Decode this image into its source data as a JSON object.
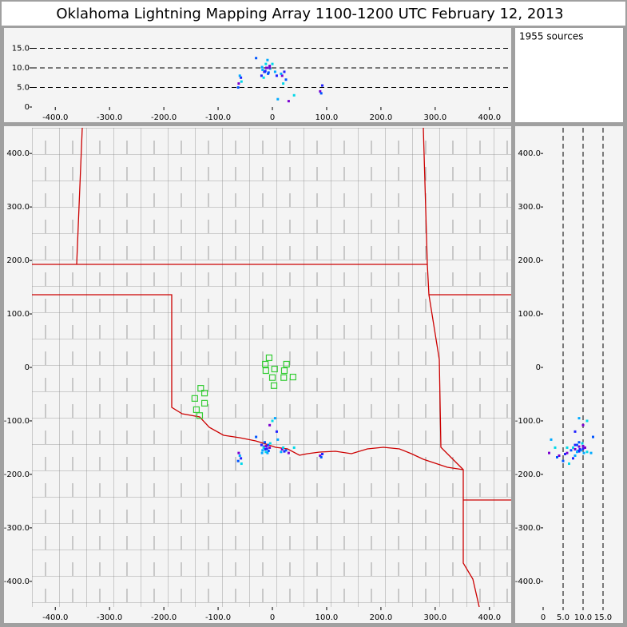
{
  "chart_data": {
    "type": "scatter",
    "title": "Oklahoma Lightning Mapping Array   1100-1200 UTC  February 12, 2013",
    "sources_label": "1955 sources",
    "colors": [
      "#7a00d0",
      "#2222ff",
      "#0055ff",
      "#00aaff",
      "#00d8e8"
    ],
    "station_color": "#33cc33",
    "sources": {
      "x": [
        -15,
        -10,
        -8,
        -18,
        -12,
        -5,
        -20,
        -14,
        -9,
        -16,
        -11,
        -13,
        -7,
        -19,
        -4,
        18,
        22,
        25,
        16,
        20,
        -62,
        -58,
        -63,
        -60,
        -57,
        88,
        92,
        90,
        5,
        0,
        -5,
        8,
        -30,
        10,
        40,
        30
      ],
      "y": [
        -148,
        -152,
        -145,
        -155,
        -158,
        -150,
        -145,
        -140,
        -160,
        -150,
        -147,
        -153,
        -156,
        -160,
        -142,
        -153,
        -157,
        -155,
        -158,
        -150,
        -160,
        -170,
        -175,
        -165,
        -180,
        -165,
        -162,
        -168,
        -95,
        -100,
        -108,
        -120,
        -130,
        -135,
        -150,
        -160
      ],
      "alt": [
        9,
        10,
        8.5,
        9.5,
        11,
        10.5,
        8,
        9,
        12,
        7.5,
        10,
        9.2,
        8.8,
        10.2,
        9.8,
        8,
        9,
        7,
        8.5,
        6,
        6,
        7.5,
        5,
        8,
        6.5,
        4,
        5.5,
        3.5,
        9,
        11,
        10,
        8,
        12.5,
        2,
        3,
        1.5
      ]
    },
    "stations": {
      "x": [
        -6,
        -13,
        4,
        26,
        22,
        -12,
        0,
        21,
        38,
        3,
        -132,
        -125,
        -143,
        -125,
        -140,
        -134
      ],
      "y": [
        18,
        6,
        -3,
        6,
        -6,
        -6,
        -19,
        -19,
        -18,
        -34,
        -39,
        -48,
        -58,
        -67,
        -79,
        -90
      ]
    },
    "plan": {
      "xlim": [
        -443,
        440
      ],
      "ylim": [
        -448,
        448
      ],
      "xticks": [
        {
          "value": -400,
          "label": "-400.0"
        },
        {
          "value": -300,
          "label": "-300.0"
        },
        {
          "value": -200,
          "label": "-200.0"
        },
        {
          "value": -100,
          "label": "-100.0"
        },
        0,
        {
          "value": 100,
          "label": "100.0"
        },
        {
          "value": 200,
          "label": "200.0"
        },
        {
          "value": 300,
          "label": "300.0"
        },
        {
          "value": 400,
          "label": "400.0"
        }
      ],
      "yticks": [
        {
          "value": -400,
          "label": "-400.0"
        },
        {
          "value": -300,
          "label": "-300.0"
        },
        {
          "value": -200,
          "label": "-200.0"
        },
        {
          "value": -100,
          "label": "-100.0"
        },
        0,
        {
          "value": 100,
          "label": "100.0"
        },
        {
          "value": 200,
          "label": "200.0"
        },
        {
          "value": 300,
          "label": "300.0"
        },
        {
          "value": 400,
          "label": "400.0"
        }
      ]
    },
    "xz": {
      "xlim": [
        -443,
        440
      ],
      "ylim": [
        0,
        20
      ],
      "grid": true,
      "xticks": [
        {
          "value": -400,
          "label": "-400.0"
        },
        {
          "value": -300,
          "label": "-300.0"
        },
        {
          "value": -200,
          "label": "-200.0"
        },
        {
          "value": -100,
          "label": "-100.0"
        },
        0,
        {
          "value": 100,
          "label": "100.0"
        },
        {
          "value": 200,
          "label": "200.0"
        },
        {
          "value": 300,
          "label": "300.0"
        },
        {
          "value": 400,
          "label": "400.0"
        }
      ],
      "yticks": [
        0,
        {
          "value": 5,
          "label": "5.0"
        },
        {
          "value": 10,
          "label": "10.0"
        },
        {
          "value": 15,
          "label": "15.0"
        }
      ]
    },
    "yz": {
      "xlim": [
        0,
        20
      ],
      "ylim": [
        -448,
        448
      ],
      "grid": true,
      "xticks": [
        0,
        {
          "value": 5,
          "label": "5.0"
        },
        {
          "value": 10,
          "label": "10.0"
        },
        {
          "value": 15,
          "label": "15.0"
        }
      ],
      "yticks": [
        {
          "value": -400,
          "label": "-400.0"
        },
        {
          "value": -300,
          "label": "-300.0"
        },
        {
          "value": -200,
          "label": "-200.0"
        },
        {
          "value": -100,
          "label": "-100.0"
        },
        0,
        {
          "value": 100,
          "label": "100.0"
        },
        {
          "value": 200,
          "label": "200.0"
        },
        {
          "value": 300,
          "label": "300.0"
        },
        {
          "value": 400,
          "label": "400.0"
        }
      ]
    }
  }
}
